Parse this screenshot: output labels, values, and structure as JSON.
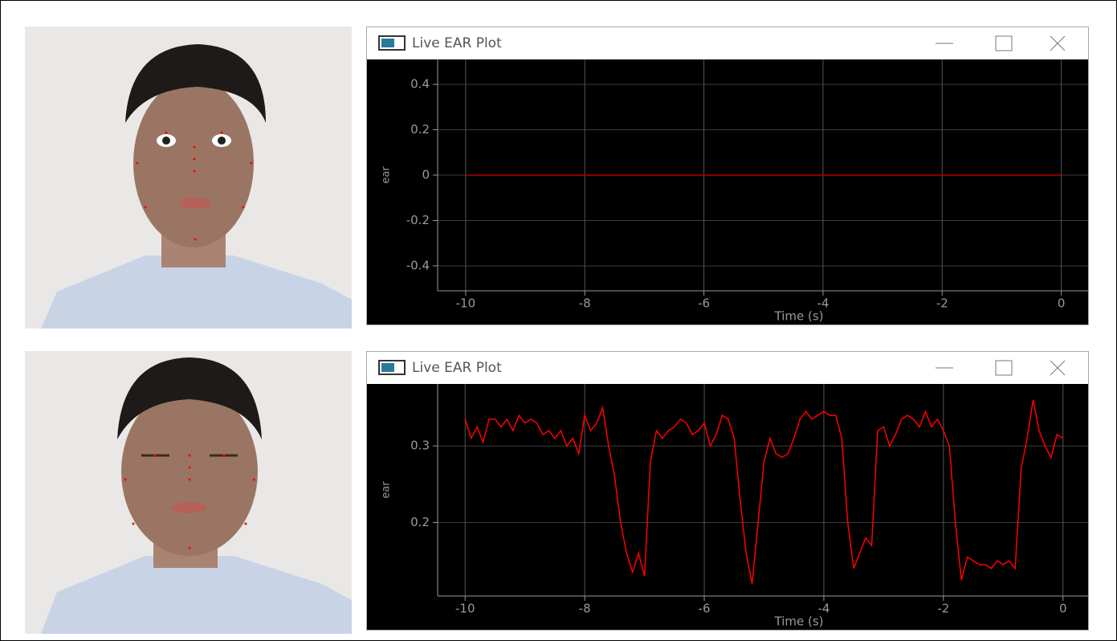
{
  "chart_data": [
    {
      "type": "line",
      "title": "Live EAR Plot",
      "xlabel": "Time (s)",
      "ylabel": "ear",
      "x": [
        -10,
        -9,
        -8,
        -7,
        -6,
        -5,
        -4,
        -3,
        -2,
        -1,
        0
      ],
      "series": [
        {
          "color": "#b00000",
          "values": [
            0,
            0,
            0,
            0,
            0,
            0,
            0,
            0,
            0,
            0,
            0
          ]
        }
      ],
      "xlim": [
        -10.47,
        0.45
      ],
      "xticks": [
        -10,
        -8,
        -6,
        -4,
        -2,
        0
      ],
      "ylim": [
        -0.51,
        0.51
      ],
      "yticks": [
        0.4,
        0.2,
        0,
        -0.2,
        -0.4
      ],
      "grid": true
    },
    {
      "type": "line",
      "title": "Live EAR Plot",
      "xlabel": "Time (s)",
      "ylabel": "ear",
      "x": [
        -10.0,
        -9.9,
        -9.8,
        -9.7,
        -9.6,
        -9.5,
        -9.4,
        -9.3,
        -9.2,
        -9.1,
        -9.0,
        -8.9,
        -8.8,
        -8.7,
        -8.6,
        -8.5,
        -8.4,
        -8.3,
        -8.2,
        -8.1,
        -8.0,
        -7.9,
        -7.8,
        -7.7,
        -7.6,
        -7.5,
        -7.4,
        -7.3,
        -7.2,
        -7.1,
        -7.0,
        -6.9,
        -6.8,
        -6.7,
        -6.6,
        -6.5,
        -6.4,
        -6.3,
        -6.2,
        -6.1,
        -6.0,
        -5.9,
        -5.8,
        -5.7,
        -5.6,
        -5.5,
        -5.4,
        -5.3,
        -5.2,
        -5.1,
        -5.0,
        -4.9,
        -4.8,
        -4.7,
        -4.6,
        -4.5,
        -4.4,
        -4.3,
        -4.2,
        -4.1,
        -4.0,
        -3.9,
        -3.8,
        -3.7,
        -3.6,
        -3.5,
        -3.4,
        -3.3,
        -3.2,
        -3.1,
        -3.0,
        -2.9,
        -2.8,
        -2.7,
        -2.6,
        -2.5,
        -2.4,
        -2.3,
        -2.2,
        -2.1,
        -2.0,
        -1.9,
        -1.8,
        -1.7,
        -1.6,
        -1.5,
        -1.4,
        -1.3,
        -1.2,
        -1.1,
        -1.0,
        -0.9,
        -0.8,
        -0.7,
        -0.6,
        -0.5,
        -0.4,
        -0.3,
        -0.2,
        -0.1,
        0.0
      ],
      "series": [
        {
          "color": "#ff0000",
          "values": [
            0.335,
            0.31,
            0.325,
            0.305,
            0.335,
            0.335,
            0.325,
            0.335,
            0.32,
            0.34,
            0.33,
            0.335,
            0.33,
            0.315,
            0.32,
            0.31,
            0.32,
            0.3,
            0.31,
            0.29,
            0.34,
            0.32,
            0.33,
            0.35,
            0.3,
            0.26,
            0.2,
            0.16,
            0.135,
            0.16,
            0.13,
            0.28,
            0.32,
            0.31,
            0.32,
            0.325,
            0.335,
            0.33,
            0.315,
            0.32,
            0.33,
            0.3,
            0.315,
            0.34,
            0.335,
            0.31,
            0.23,
            0.16,
            0.12,
            0.2,
            0.28,
            0.31,
            0.29,
            0.285,
            0.29,
            0.31,
            0.335,
            0.345,
            0.335,
            0.34,
            0.345,
            0.34,
            0.34,
            0.31,
            0.2,
            0.14,
            0.16,
            0.18,
            0.17,
            0.32,
            0.325,
            0.3,
            0.315,
            0.335,
            0.34,
            0.335,
            0.325,
            0.345,
            0.325,
            0.335,
            0.32,
            0.3,
            0.2,
            0.125,
            0.155,
            0.15,
            0.145,
            0.145,
            0.14,
            0.15,
            0.145,
            0.15,
            0.14,
            0.27,
            0.31,
            0.36,
            0.32,
            0.3,
            0.285,
            0.315,
            0.31
          ]
        }
      ],
      "xlim": [
        -10.46,
        0.42
      ],
      "xticks": [
        -10,
        -8,
        -6,
        -4,
        -2,
        0
      ],
      "ylim": [
        0.104,
        0.381
      ],
      "yticks": [
        0.3,
        0.2
      ],
      "grid": true
    }
  ]
}
